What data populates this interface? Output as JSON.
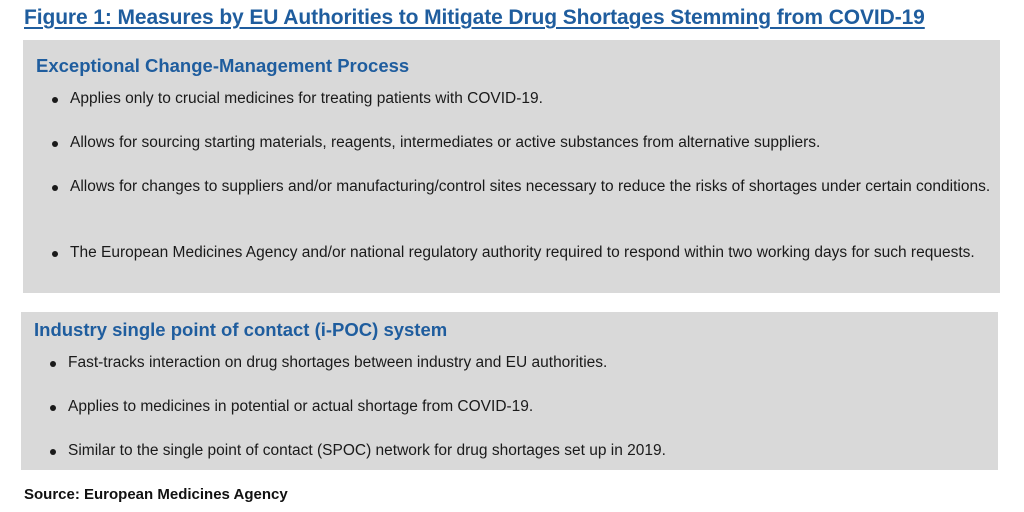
{
  "figure": {
    "title": "Figure 1: Measures by EU Authorities to Mitigate Drug Shortages Stemming from COVID-19"
  },
  "sections": [
    {
      "heading": "Exceptional Change-Management Process",
      "bullets": [
        "Applies only to crucial medicines for treating patients with COVID-19.",
        "Allows for sourcing starting materials, reagents, intermediates or active substances from alternative suppliers.",
        "Allows for changes to suppliers and/or manufacturing/control sites necessary to reduce the risks of shortages under certain conditions.",
        "The European Medicines Agency and/or national regulatory authority required to respond within two working days for such requests."
      ]
    },
    {
      "heading": "Industry single point of contact (i-POC) system",
      "bullets": [
        "Fast-tracks interaction on drug shortages between industry and EU authorities.",
        "Applies to medicines in potential or actual shortage from COVID-19.",
        "Similar to the single point of contact (SPOC) network for drug shortages set up in 2019."
      ]
    }
  ],
  "source": "Source: European Medicines Agency",
  "colors": {
    "accent": "#1f5d9e",
    "panel_background": "#d9d9d9",
    "text": "#1a1a1a"
  }
}
